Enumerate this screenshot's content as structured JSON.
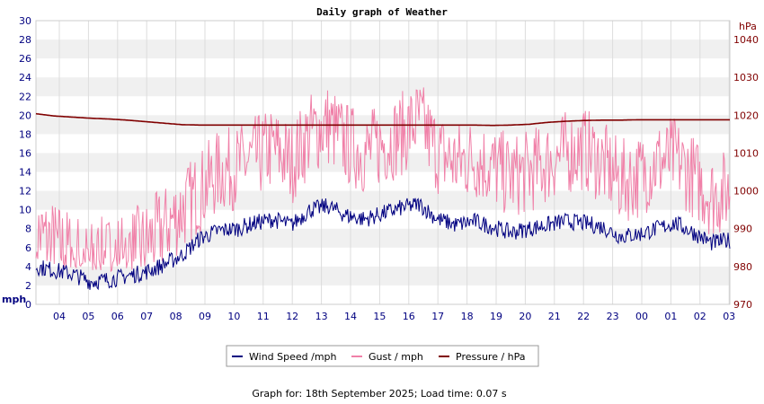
{
  "chart_data": {
    "type": "line",
    "title": "Daily graph of Weather",
    "y_left": {
      "unit": "mph",
      "ylim": [
        0,
        30
      ],
      "ticks": [
        "0",
        "2",
        "4",
        "6",
        "8",
        "10",
        "12",
        "14",
        "16",
        "18",
        "20",
        "22",
        "24",
        "26",
        "28",
        "30"
      ]
    },
    "y_right": {
      "unit": "hPa",
      "ylim": [
        970,
        1045
      ],
      "ticks": [
        "970",
        "980",
        "990",
        "1000",
        "1010",
        "1020",
        "1030",
        "1040"
      ]
    },
    "x_ticks": [
      "04",
      "05",
      "06",
      "07",
      "08",
      "09",
      "10",
      "11",
      "12",
      "13",
      "14",
      "15",
      "16",
      "17",
      "18",
      "19",
      "20",
      "21",
      "22",
      "23",
      "00",
      "01",
      "02",
      "03"
    ],
    "grid": "horizontal alternating bands",
    "legend_placement": "bottom-center",
    "series": [
      {
        "name": "Wind Speed /mph",
        "axis": "left",
        "color": "#000080",
        "values": [
          4.0,
          3.6,
          3.2,
          2.4,
          2.6,
          3.0,
          3.4,
          4.2,
          5.2,
          7.0,
          7.8,
          8.0,
          8.6,
          9.0,
          8.4,
          10.0,
          10.4,
          9.4,
          9.0,
          9.6,
          10.2,
          10.6,
          9.0,
          8.4,
          8.8,
          8.2,
          7.6,
          8.0,
          8.4,
          8.8,
          8.6,
          8.2,
          7.2,
          7.4,
          8.0,
          8.6,
          7.6,
          6.5,
          6.8
        ]
      },
      {
        "name": "Gust / mph",
        "axis": "left",
        "color": "#f080a8",
        "values": [
          7.5,
          6.5,
          5.5,
          4.5,
          5.0,
          5.5,
          6.5,
          8.0,
          10.0,
          12.0,
          14.0,
          14.5,
          15.5,
          16.5,
          15.0,
          18.0,
          19.0,
          17.0,
          16.0,
          17.0,
          18.0,
          19.5,
          16.0,
          15.0,
          15.5,
          14.5,
          13.5,
          14.0,
          15.0,
          16.0,
          16.5,
          15.0,
          13.0,
          13.5,
          15.0,
          15.5,
          13.5,
          11.5,
          12.0
        ]
      },
      {
        "name": "Pressure / hPa",
        "axis": "right",
        "color": "#800000",
        "values": [
          1020.4,
          1019.8,
          1019.5,
          1019.2,
          1019.0,
          1018.7,
          1018.3,
          1017.9,
          1017.5,
          1017.4,
          1017.4,
          1017.4,
          1017.4,
          1017.4,
          1017.4,
          1017.4,
          1017.4,
          1017.4,
          1017.4,
          1017.4,
          1017.4,
          1017.4,
          1017.4,
          1017.4,
          1017.4,
          1017.3,
          1017.4,
          1017.6,
          1018.1,
          1018.4,
          1018.6,
          1018.7,
          1018.7,
          1018.8,
          1018.8,
          1018.8,
          1018.8,
          1018.8,
          1018.8
        ]
      }
    ]
  },
  "footer": "Graph for: 18th September 2025; Load time: 0.07 s"
}
